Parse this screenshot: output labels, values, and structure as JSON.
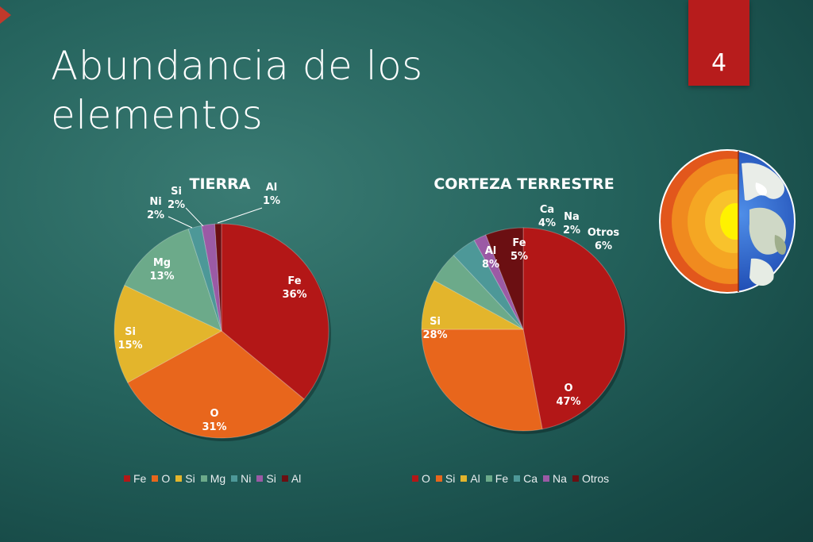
{
  "slide": {
    "title": "Abundancia de los elementos",
    "page_number": "4"
  },
  "chart_data": [
    {
      "type": "pie",
      "title": "TIERRA",
      "categories": [
        "Fe",
        "O",
        "Si",
        "Mg",
        "Ni",
        "Si",
        "Al"
      ],
      "values": [
        36,
        31,
        15,
        13,
        2,
        2,
        1
      ],
      "labels": [
        "36%",
        "31%",
        "15%",
        "13%",
        "2%",
        "2%",
        "1%"
      ],
      "colors": [
        "#b31717",
        "#e8661c",
        "#e3b52c",
        "#6caa8a",
        "#4d9898",
        "#9b5aa5",
        "#6b0f12"
      ],
      "legend_position": "bottom"
    },
    {
      "type": "pie",
      "title": "CORTEZA TERRESTRE",
      "categories": [
        "O",
        "Si",
        "Al",
        "Fe",
        "Ca",
        "Na",
        "Otros"
      ],
      "values": [
        47,
        28,
        8,
        5,
        4,
        2,
        6
      ],
      "labels": [
        "47%",
        "28%",
        "8%",
        "5%",
        "4%",
        "2%",
        "6%"
      ],
      "colors": [
        "#b31717",
        "#e8661c",
        "#e3b52c",
        "#6caa8a",
        "#4d9898",
        "#9b5aa5",
        "#6b0f12"
      ],
      "legend_position": "bottom"
    }
  ]
}
